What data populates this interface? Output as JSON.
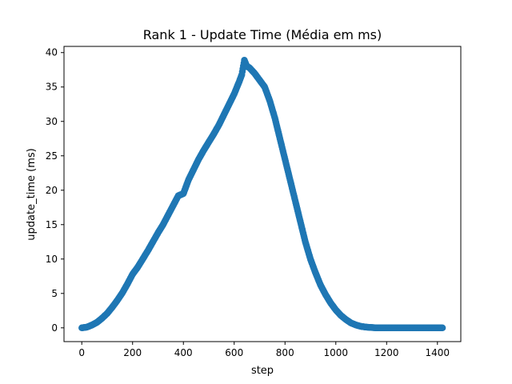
{
  "chart_data": {
    "type": "scatter",
    "title": "Rank 1 - Update Time (Média em ms)",
    "xlabel": "step",
    "ylabel": "update_time (ms)",
    "xlim": [
      -70,
      1492
    ],
    "ylim": [
      -2.0,
      40.9
    ],
    "xticks": [
      0,
      200,
      400,
      600,
      800,
      1000,
      1200,
      1400
    ],
    "yticks": [
      0,
      5,
      10,
      15,
      20,
      25,
      30,
      35,
      40
    ],
    "grid": false,
    "legend": "none",
    "marker_color": "#1f77b4",
    "series": [
      {
        "x": [
          0,
          20,
          40,
          60,
          80,
          100,
          120,
          140,
          160,
          180,
          200,
          220,
          240,
          260,
          280,
          300,
          320,
          340,
          360,
          380,
          400,
          420,
          440,
          460,
          480,
          500,
          520,
          540,
          560,
          580,
          600,
          620,
          630,
          640,
          650,
          660,
          680,
          700,
          720,
          740,
          760,
          780,
          800,
          820,
          840,
          860,
          880,
          900,
          920,
          940,
          960,
          980,
          1000,
          1020,
          1040,
          1060,
          1080,
          1100,
          1120,
          1140,
          1160,
          1180,
          1200,
          1250,
          1300,
          1350,
          1400,
          1420
        ],
        "y": [
          0.0,
          0.1,
          0.4,
          0.8,
          1.4,
          2.1,
          3.0,
          4.0,
          5.1,
          6.4,
          7.8,
          8.8,
          10.0,
          11.2,
          12.5,
          13.8,
          15.0,
          16.4,
          17.8,
          19.2,
          19.5,
          21.5,
          23.0,
          24.5,
          25.8,
          27.0,
          28.2,
          29.5,
          31.0,
          32.5,
          34.0,
          35.8,
          36.8,
          38.9,
          38.0,
          37.8,
          37.0,
          36.0,
          35.0,
          33.0,
          30.5,
          27.5,
          24.5,
          21.5,
          18.5,
          15.5,
          12.5,
          10.0,
          8.0,
          6.2,
          4.8,
          3.6,
          2.6,
          1.8,
          1.2,
          0.7,
          0.4,
          0.2,
          0.1,
          0.05,
          0.0,
          0.0,
          0.0,
          0.0,
          0.0,
          0.0,
          0.0,
          0.0
        ]
      }
    ]
  }
}
